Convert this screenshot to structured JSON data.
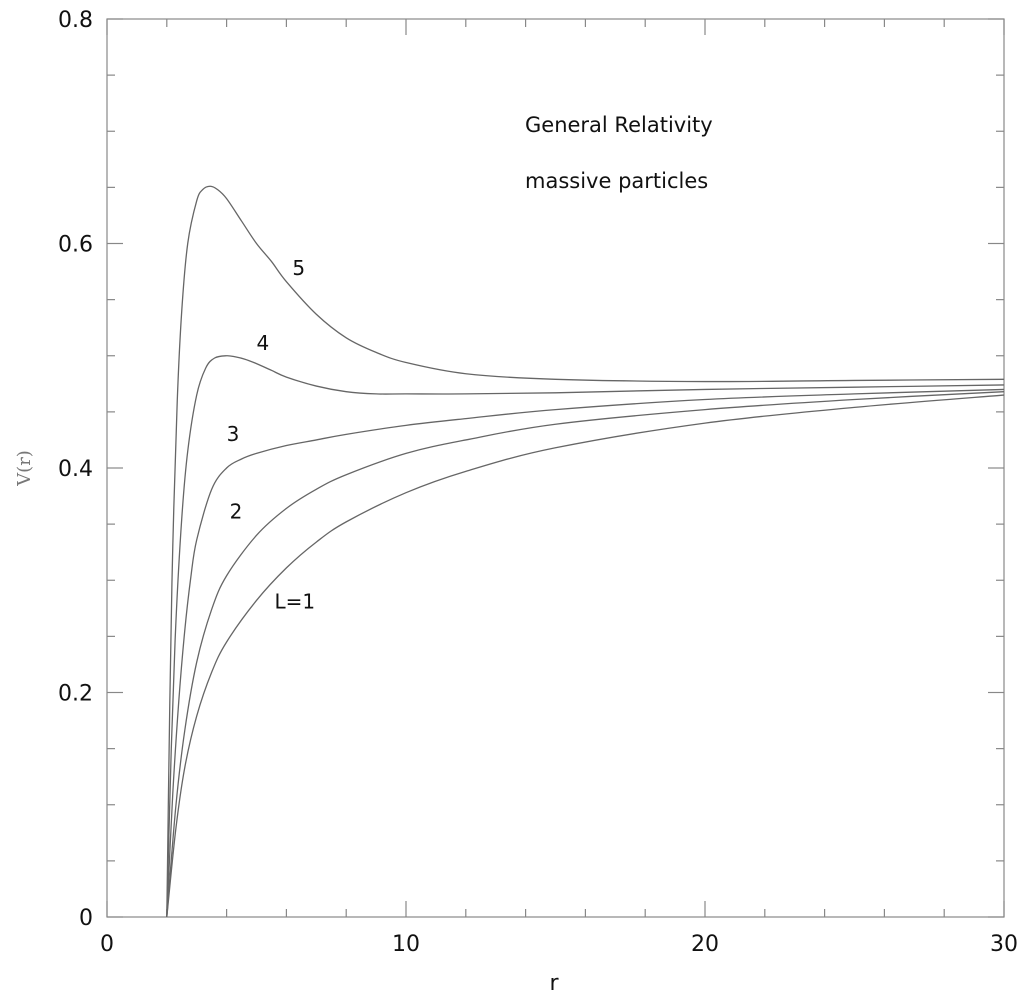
{
  "chart_data": {
    "type": "line",
    "title": "",
    "xlabel": "r",
    "ylabel": "V(r)",
    "xlim": [
      0,
      30
    ],
    "ylim": [
      0,
      0.8
    ],
    "grid": false,
    "legend": "none",
    "xticks": [
      0,
      10,
      20,
      30
    ],
    "yticks": [
      0,
      0.2,
      0.4,
      0.6,
      0.8
    ],
    "xtick_labels": [
      "0",
      "10",
      "20",
      "30"
    ],
    "ytick_labels": [
      "0",
      "0.2",
      "0.4",
      "0.6",
      "0.8"
    ],
    "annotations": [
      "General Relativity",
      "massive particles"
    ],
    "line_color": "#666666",
    "series": [
      {
        "name": "L=1",
        "label_at": [
          5.6,
          0.275
        ],
        "x": [
          2.0,
          2.3,
          2.6,
          3.0,
          3.5,
          4,
          5,
          6,
          7,
          8,
          10,
          12,
          15,
          20,
          25,
          30
        ],
        "y": [
          0.0,
          0.078,
          0.133,
          0.179,
          0.218,
          0.245,
          0.282,
          0.311,
          0.334,
          0.352,
          0.378,
          0.397,
          0.418,
          0.44,
          0.454,
          0.465
        ]
      },
      {
        "name": "2",
        "label_at": [
          4.1,
          0.355
        ],
        "x": [
          2.0,
          2.3,
          2.6,
          3.0,
          3.5,
          4,
          5,
          6,
          7,
          8,
          10,
          12,
          15,
          20,
          25,
          30
        ],
        "y": [
          0.0,
          0.098,
          0.166,
          0.227,
          0.274,
          0.304,
          0.34,
          0.364,
          0.381,
          0.394,
          0.413,
          0.425,
          0.439,
          0.452,
          0.461,
          0.468
        ]
      },
      {
        "name": "3",
        "label_at": [
          4.0,
          0.424
        ],
        "x": [
          2.0,
          2.2,
          2.4,
          2.6,
          2.8,
          3.0,
          3.5,
          4,
          4.5,
          5,
          6,
          7,
          8,
          10,
          12,
          15,
          20,
          25,
          30
        ],
        "y": [
          0.0,
          0.11,
          0.192,
          0.255,
          0.302,
          0.336,
          0.381,
          0.4,
          0.408,
          0.413,
          0.42,
          0.425,
          0.43,
          0.438,
          0.444,
          0.452,
          0.461,
          0.466,
          0.47
        ]
      },
      {
        "name": "4",
        "label_at": [
          5.0,
          0.505
        ],
        "x": [
          2.0,
          2.15,
          2.3,
          2.5,
          2.7,
          3.0,
          3.3,
          3.6,
          4.0,
          4.3,
          4.6,
          5,
          5.5,
          6,
          7,
          8,
          9,
          10,
          12,
          15,
          20,
          25,
          30
        ],
        "y": [
          0.0,
          0.15,
          0.26,
          0.355,
          0.415,
          0.465,
          0.489,
          0.498,
          0.5,
          0.499,
          0.497,
          0.493,
          0.487,
          0.481,
          0.473,
          0.468,
          0.466,
          0.466,
          0.466,
          0.467,
          0.47,
          0.472,
          0.474
        ]
      },
      {
        "name": "5",
        "label_at": [
          6.2,
          0.572
        ],
        "x": [
          2.0,
          2.1,
          2.2,
          2.35,
          2.5,
          2.7,
          3.0,
          3.2,
          3.45,
          3.7,
          4.0,
          4.5,
          5,
          5.5,
          6,
          7,
          8,
          9,
          10,
          12,
          15,
          20,
          25,
          30
        ],
        "y": [
          0.0,
          0.19,
          0.33,
          0.46,
          0.54,
          0.6,
          0.638,
          0.648,
          0.651,
          0.648,
          0.64,
          0.62,
          0.6,
          0.584,
          0.566,
          0.537,
          0.516,
          0.503,
          0.494,
          0.484,
          0.479,
          0.477,
          0.478,
          0.479
        ]
      }
    ]
  }
}
